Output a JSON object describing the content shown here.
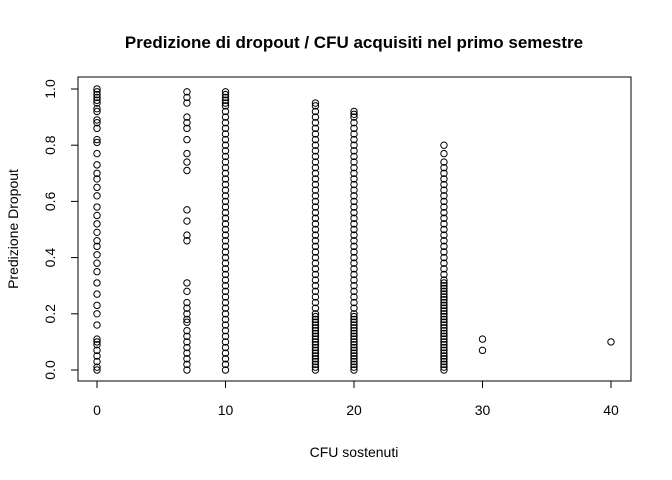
{
  "chart_data": {
    "type": "scatter",
    "title": "Predizione di dropout / CFU acquisiti nel primo semestre",
    "xlabel": "CFU sostenuti",
    "ylabel": "Predizione Dropout",
    "xlim": [
      0,
      40
    ],
    "ylim": [
      0,
      1
    ],
    "x_ticks": [
      0,
      10,
      20,
      30,
      40
    ],
    "y_ticks": [
      0.0,
      0.2,
      0.4,
      0.6,
      0.8,
      1.0
    ],
    "x_tick_labels": [
      "0",
      "10",
      "20",
      "30",
      "40"
    ],
    "y_tick_labels": [
      "0.0",
      "0.2",
      "0.4",
      "0.6",
      "0.8",
      "1.0"
    ],
    "grid": false,
    "legend": "none",
    "marker": "open-circle",
    "marker_color": "#000000",
    "series": [
      {
        "points": [
          {
            "x": 0,
            "y": [
              0.0,
              0.01,
              0.03,
              0.05,
              0.07,
              0.09,
              0.1,
              0.11,
              0.16,
              0.2,
              0.23,
              0.27,
              0.31,
              0.35,
              0.38,
              0.41,
              0.44,
              0.46,
              0.49,
              0.52,
              0.55,
              0.58,
              0.62,
              0.65,
              0.68,
              0.7,
              0.73,
              0.77,
              0.81,
              0.82,
              0.86,
              0.88,
              0.89,
              0.92,
              0.93,
              0.95,
              0.96,
              0.97,
              0.98,
              0.99,
              1.0
            ]
          },
          {
            "x": 7,
            "y": [
              0.0,
              0.02,
              0.04,
              0.06,
              0.08,
              0.1,
              0.12,
              0.14,
              0.17,
              0.18,
              0.2,
              0.22,
              0.24,
              0.28,
              0.31,
              0.46,
              0.48,
              0.53,
              0.57,
              0.71,
              0.74,
              0.77,
              0.82,
              0.86,
              0.88,
              0.9,
              0.95,
              0.97,
              0.99
            ]
          },
          {
            "x": 10,
            "y": [
              0.0,
              0.02,
              0.04,
              0.06,
              0.08,
              0.1,
              0.12,
              0.14,
              0.16,
              0.18,
              0.2,
              0.22,
              0.24,
              0.26,
              0.28,
              0.3,
              0.32,
              0.34,
              0.36,
              0.38,
              0.4,
              0.42,
              0.44,
              0.46,
              0.48,
              0.5,
              0.52,
              0.54,
              0.56,
              0.58,
              0.6,
              0.62,
              0.64,
              0.66,
              0.68,
              0.7,
              0.72,
              0.74,
              0.76,
              0.78,
              0.8,
              0.82,
              0.84,
              0.86,
              0.88,
              0.9,
              0.92,
              0.94,
              0.95,
              0.96,
              0.97,
              0.98,
              0.99
            ]
          },
          {
            "x": 17,
            "y": [
              0.0,
              0.01,
              0.02,
              0.03,
              0.04,
              0.05,
              0.06,
              0.07,
              0.08,
              0.09,
              0.1,
              0.11,
              0.12,
              0.13,
              0.14,
              0.15,
              0.16,
              0.17,
              0.18,
              0.19,
              0.2,
              0.22,
              0.24,
              0.26,
              0.28,
              0.3,
              0.32,
              0.34,
              0.36,
              0.38,
              0.4,
              0.42,
              0.44,
              0.46,
              0.48,
              0.5,
              0.52,
              0.54,
              0.56,
              0.58,
              0.6,
              0.62,
              0.64,
              0.66,
              0.68,
              0.7,
              0.72,
              0.74,
              0.76,
              0.78,
              0.8,
              0.82,
              0.84,
              0.86,
              0.88,
              0.9,
              0.92,
              0.94,
              0.95
            ]
          },
          {
            "x": 20,
            "y": [
              0.0,
              0.01,
              0.02,
              0.03,
              0.04,
              0.05,
              0.06,
              0.07,
              0.08,
              0.09,
              0.1,
              0.11,
              0.12,
              0.13,
              0.14,
              0.15,
              0.16,
              0.17,
              0.18,
              0.19,
              0.2,
              0.22,
              0.24,
              0.26,
              0.28,
              0.3,
              0.32,
              0.34,
              0.36,
              0.38,
              0.4,
              0.42,
              0.44,
              0.46,
              0.48,
              0.5,
              0.52,
              0.54,
              0.56,
              0.58,
              0.6,
              0.62,
              0.64,
              0.66,
              0.68,
              0.7,
              0.72,
              0.74,
              0.76,
              0.78,
              0.8,
              0.82,
              0.84,
              0.86,
              0.88,
              0.9,
              0.91,
              0.92
            ]
          },
          {
            "x": 27,
            "y": [
              0.0,
              0.01,
              0.02,
              0.03,
              0.04,
              0.05,
              0.06,
              0.07,
              0.08,
              0.09,
              0.1,
              0.11,
              0.12,
              0.13,
              0.14,
              0.15,
              0.16,
              0.17,
              0.18,
              0.19,
              0.2,
              0.21,
              0.22,
              0.23,
              0.24,
              0.25,
              0.26,
              0.27,
              0.28,
              0.29,
              0.3,
              0.31,
              0.32,
              0.34,
              0.36,
              0.38,
              0.4,
              0.42,
              0.44,
              0.46,
              0.48,
              0.5,
              0.52,
              0.54,
              0.56,
              0.58,
              0.6,
              0.62,
              0.64,
              0.66,
              0.68,
              0.7,
              0.72,
              0.74,
              0.77,
              0.8
            ]
          },
          {
            "x": 30,
            "y": [
              0.07,
              0.11
            ]
          },
          {
            "x": 40,
            "y": [
              0.1
            ]
          }
        ]
      }
    ]
  }
}
